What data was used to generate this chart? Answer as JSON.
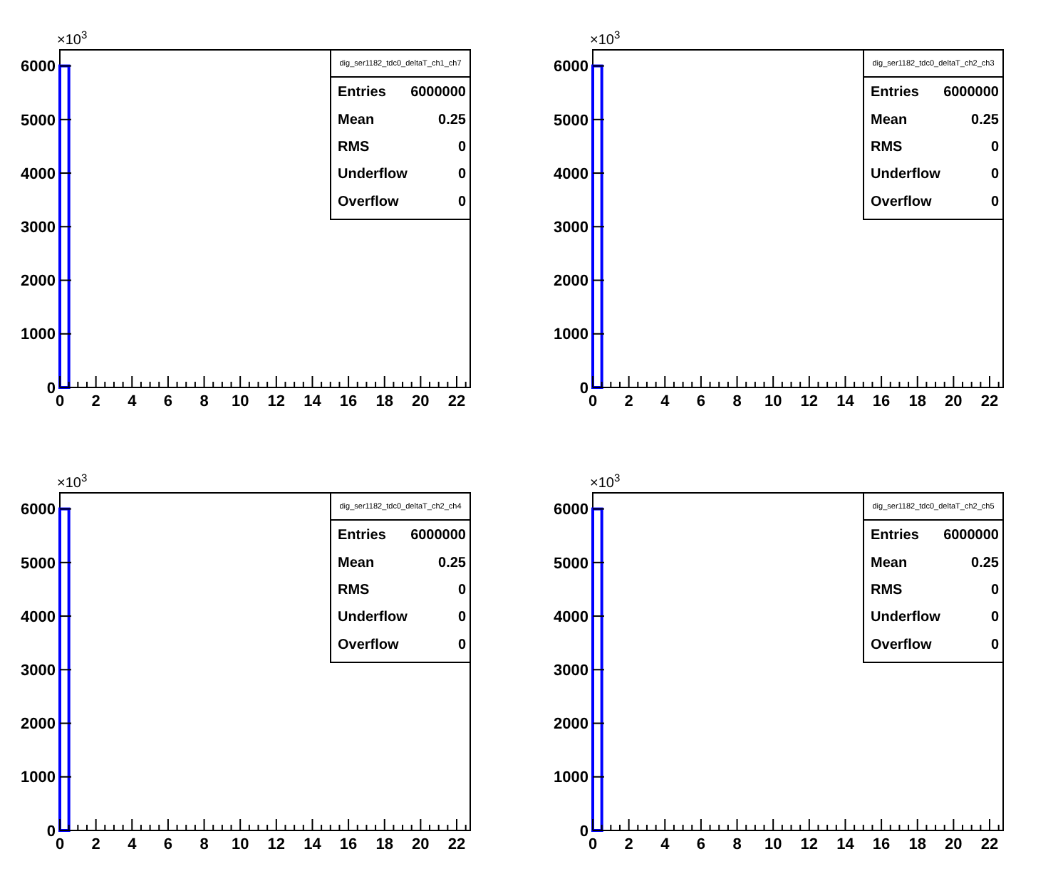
{
  "chart_data": [
    {
      "type": "histogram",
      "title": "dig_ser1182_tdc0_deltaT_ch1_ch7",
      "color": "#0000ff",
      "bins": [
        0,
        0.5,
        1,
        1.5,
        2,
        2.5,
        3,
        3.5,
        4,
        4.5,
        5,
        5.5,
        6,
        6.5,
        7,
        7.5,
        8,
        8.5,
        9,
        9.5,
        10,
        10.5,
        11,
        11.5,
        12,
        12.5,
        13,
        13.5,
        14,
        14.5,
        15,
        15.5,
        16,
        16.5,
        17,
        17.5,
        18,
        18.5,
        19,
        19.5,
        20,
        20.5,
        21,
        21.5,
        22,
        22.5
      ],
      "values": [
        6000,
        0,
        0,
        0,
        0,
        0,
        0,
        0,
        0,
        0,
        0,
        0,
        0,
        0,
        0,
        0,
        0,
        0,
        0,
        0,
        0,
        0,
        0,
        0,
        0,
        0,
        0,
        0,
        0,
        0,
        0,
        0,
        0,
        0,
        0,
        0,
        0,
        0,
        0,
        0,
        0,
        0,
        0,
        0,
        0
      ],
      "xlim": [
        0,
        22.75
      ],
      "xticks": [
        0,
        {
          "value": 0.5,
          "label": null
        },
        {
          "value": 1,
          "label": null
        },
        {
          "value": 1.5,
          "label": null
        },
        2,
        {
          "value": 2.5,
          "label": null
        },
        {
          "value": 3,
          "label": null
        },
        {
          "value": 3.5,
          "label": null
        },
        4,
        {
          "value": 4.5,
          "label": null
        },
        {
          "value": 5,
          "label": null
        },
        {
          "value": 5.5,
          "label": null
        },
        6,
        {
          "value": 6.5,
          "label": null
        },
        {
          "value": 7,
          "label": null
        },
        {
          "value": 7.5,
          "label": null
        },
        8,
        {
          "value": 8.5,
          "label": null
        },
        {
          "value": 9,
          "label": null
        },
        {
          "value": 9.5,
          "label": null
        },
        10,
        {
          "value": 10.5,
          "label": null
        },
        {
          "value": 11,
          "label": null
        },
        {
          "value": 11.5,
          "label": null
        },
        12,
        {
          "value": 12.5,
          "label": null
        },
        {
          "value": 13,
          "label": null
        },
        {
          "value": 13.5,
          "label": null
        },
        14,
        {
          "value": 14.5,
          "label": null
        },
        {
          "value": 15,
          "label": null
        },
        {
          "value": 15.5,
          "label": null
        },
        16,
        {
          "value": 16.5,
          "label": null
        },
        {
          "value": 17,
          "label": null
        },
        {
          "value": 17.5,
          "label": null
        },
        18,
        {
          "value": 18.5,
          "label": null
        },
        {
          "value": 19,
          "label": null
        },
        {
          "value": 19.5,
          "label": null
        },
        20,
        {
          "value": 20.5,
          "label": null
        },
        {
          "value": 21,
          "label": null
        },
        {
          "value": 21.5,
          "label": null
        },
        22,
        {
          "value": 22.5,
          "label": null
        }
      ],
      "ylim": [
        0,
        6300
      ],
      "yticks": [
        0,
        1000,
        2000,
        3000,
        4000,
        5000,
        6000
      ],
      "annotations": [
        "×10$^{3}$",
        "Entries\t6000000",
        "Mean\t0.25",
        "RMS\t0",
        "Underflow\t0",
        "Overflow\t0"
      ]
    },
    {
      "type": "histogram",
      "title": "dig_ser1182_tdc0_deltaT_ch2_ch3",
      "color": "#0000ff",
      "bins": [
        0,
        0.5,
        1,
        1.5,
        2,
        2.5,
        3,
        3.5,
        4,
        4.5,
        5,
        5.5,
        6,
        6.5,
        7,
        7.5,
        8,
        8.5,
        9,
        9.5,
        10,
        10.5,
        11,
        11.5,
        12,
        12.5,
        13,
        13.5,
        14,
        14.5,
        15,
        15.5,
        16,
        16.5,
        17,
        17.5,
        18,
        18.5,
        19,
        19.5,
        20,
        20.5,
        21,
        21.5,
        22,
        22.5
      ],
      "values": [
        6000,
        0,
        0,
        0,
        0,
        0,
        0,
        0,
        0,
        0,
        0,
        0,
        0,
        0,
        0,
        0,
        0,
        0,
        0,
        0,
        0,
        0,
        0,
        0,
        0,
        0,
        0,
        0,
        0,
        0,
        0,
        0,
        0,
        0,
        0,
        0,
        0,
        0,
        0,
        0,
        0,
        0,
        0,
        0,
        0
      ],
      "xlim": [
        0,
        22.75
      ],
      "xticks": [
        0,
        {
          "value": 0.5,
          "label": null
        },
        {
          "value": 1,
          "label": null
        },
        {
          "value": 1.5,
          "label": null
        },
        2,
        {
          "value": 2.5,
          "label": null
        },
        {
          "value": 3,
          "label": null
        },
        {
          "value": 3.5,
          "label": null
        },
        4,
        {
          "value": 4.5,
          "label": null
        },
        {
          "value": 5,
          "label": null
        },
        {
          "value": 5.5,
          "label": null
        },
        6,
        {
          "value": 6.5,
          "label": null
        },
        {
          "value": 7,
          "label": null
        },
        {
          "value": 7.5,
          "label": null
        },
        8,
        {
          "value": 8.5,
          "label": null
        },
        {
          "value": 9,
          "label": null
        },
        {
          "value": 9.5,
          "label": null
        },
        10,
        {
          "value": 10.5,
          "label": null
        },
        {
          "value": 11,
          "label": null
        },
        {
          "value": 11.5,
          "label": null
        },
        12,
        {
          "value": 12.5,
          "label": null
        },
        {
          "value": 13,
          "label": null
        },
        {
          "value": 13.5,
          "label": null
        },
        14,
        {
          "value": 14.5,
          "label": null
        },
        {
          "value": 15,
          "label": null
        },
        {
          "value": 15.5,
          "label": null
        },
        16,
        {
          "value": 16.5,
          "label": null
        },
        {
          "value": 17,
          "label": null
        },
        {
          "value": 17.5,
          "label": null
        },
        18,
        {
          "value": 18.5,
          "label": null
        },
        {
          "value": 19,
          "label": null
        },
        {
          "value": 19.5,
          "label": null
        },
        20,
        {
          "value": 20.5,
          "label": null
        },
        {
          "value": 21,
          "label": null
        },
        {
          "value": 21.5,
          "label": null
        },
        22,
        {
          "value": 22.5,
          "label": null
        }
      ],
      "ylim": [
        0,
        6300
      ],
      "yticks": [
        0,
        1000,
        2000,
        3000,
        4000,
        5000,
        6000
      ],
      "annotations": [
        "×10$^{3}$",
        "Entries\t6000000",
        "Mean\t0.25",
        "RMS\t0",
        "Underflow\t0",
        "Overflow\t0"
      ]
    },
    {
      "type": "histogram",
      "title": "dig_ser1182_tdc0_deltaT_ch2_ch4",
      "color": "#0000ff",
      "bins": [
        0,
        0.5,
        1,
        1.5,
        2,
        2.5,
        3,
        3.5,
        4,
        4.5,
        5,
        5.5,
        6,
        6.5,
        7,
        7.5,
        8,
        8.5,
        9,
        9.5,
        10,
        10.5,
        11,
        11.5,
        12,
        12.5,
        13,
        13.5,
        14,
        14.5,
        15,
        15.5,
        16,
        16.5,
        17,
        17.5,
        18,
        18.5,
        19,
        19.5,
        20,
        20.5,
        21,
        21.5,
        22,
        22.5
      ],
      "values": [
        6000,
        0,
        0,
        0,
        0,
        0,
        0,
        0,
        0,
        0,
        0,
        0,
        0,
        0,
        0,
        0,
        0,
        0,
        0,
        0,
        0,
        0,
        0,
        0,
        0,
        0,
        0,
        0,
        0,
        0,
        0,
        0,
        0,
        0,
        0,
        0,
        0,
        0,
        0,
        0,
        0,
        0,
        0,
        0,
        0
      ],
      "xlim": [
        0,
        22.75
      ],
      "xticks": [
        0,
        {
          "value": 0.5,
          "label": null
        },
        {
          "value": 1,
          "label": null
        },
        {
          "value": 1.5,
          "label": null
        },
        2,
        {
          "value": 2.5,
          "label": null
        },
        {
          "value": 3,
          "label": null
        },
        {
          "value": 3.5,
          "label": null
        },
        4,
        {
          "value": 4.5,
          "label": null
        },
        {
          "value": 5,
          "label": null
        },
        {
          "value": 5.5,
          "label": null
        },
        6,
        {
          "value": 6.5,
          "label": null
        },
        {
          "value": 7,
          "label": null
        },
        {
          "value": 7.5,
          "label": null
        },
        8,
        {
          "value": 8.5,
          "label": null
        },
        {
          "value": 9,
          "label": null
        },
        {
          "value": 9.5,
          "label": null
        },
        10,
        {
          "value": 10.5,
          "label": null
        },
        {
          "value": 11,
          "label": null
        },
        {
          "value": 11.5,
          "label": null
        },
        12,
        {
          "value": 12.5,
          "label": null
        },
        {
          "value": 13,
          "label": null
        },
        {
          "value": 13.5,
          "label": null
        },
        14,
        {
          "value": 14.5,
          "label": null
        },
        {
          "value": 15,
          "label": null
        },
        {
          "value": 15.5,
          "label": null
        },
        16,
        {
          "value": 16.5,
          "label": null
        },
        {
          "value": 17,
          "label": null
        },
        {
          "value": 17.5,
          "label": null
        },
        18,
        {
          "value": 18.5,
          "label": null
        },
        {
          "value": 19,
          "label": null
        },
        {
          "value": 19.5,
          "label": null
        },
        20,
        {
          "value": 20.5,
          "label": null
        },
        {
          "value": 21,
          "label": null
        },
        {
          "value": 21.5,
          "label": null
        },
        22,
        {
          "value": 22.5,
          "label": null
        }
      ],
      "ylim": [
        0,
        6300
      ],
      "yticks": [
        0,
        1000,
        2000,
        3000,
        4000,
        5000,
        6000
      ],
      "annotations": [
        "×10$^{3}$",
        "Entries\t6000000",
        "Mean\t0.25",
        "RMS\t0",
        "Underflow\t0",
        "Overflow\t0"
      ]
    },
    {
      "type": "histogram",
      "title": "dig_ser1182_tdc0_deltaT_ch2_ch5",
      "color": "#0000ff",
      "bins": [
        0,
        0.5,
        1,
        1.5,
        2,
        2.5,
        3,
        3.5,
        4,
        4.5,
        5,
        5.5,
        6,
        6.5,
        7,
        7.5,
        8,
        8.5,
        9,
        9.5,
        10,
        10.5,
        11,
        11.5,
        12,
        12.5,
        13,
        13.5,
        14,
        14.5,
        15,
        15.5,
        16,
        16.5,
        17,
        17.5,
        18,
        18.5,
        19,
        19.5,
        20,
        20.5,
        21,
        21.5,
        22,
        22.5
      ],
      "values": [
        6000,
        0,
        0,
        0,
        0,
        0,
        0,
        0,
        0,
        0,
        0,
        0,
        0,
        0,
        0,
        0,
        0,
        0,
        0,
        0,
        0,
        0,
        0,
        0,
        0,
        0,
        0,
        0,
        0,
        0,
        0,
        0,
        0,
        0,
        0,
        0,
        0,
        0,
        0,
        0,
        0,
        0,
        0,
        0,
        0
      ],
      "xlim": [
        0,
        22.75
      ],
      "xticks": [
        0,
        {
          "value": 0.5,
          "label": null
        },
        {
          "value": 1,
          "label": null
        },
        {
          "value": 1.5,
          "label": null
        },
        2,
        {
          "value": 2.5,
          "label": null
        },
        {
          "value": 3,
          "label": null
        },
        {
          "value": 3.5,
          "label": null
        },
        4,
        {
          "value": 4.5,
          "label": null
        },
        {
          "value": 5,
          "label": null
        },
        {
          "value": 5.5,
          "label": null
        },
        6,
        {
          "value": 6.5,
          "label": null
        },
        {
          "value": 7,
          "label": null
        },
        {
          "value": 7.5,
          "label": null
        },
        8,
        {
          "value": 8.5,
          "label": null
        },
        {
          "value": 9,
          "label": null
        },
        {
          "value": 9.5,
          "label": null
        },
        10,
        {
          "value": 10.5,
          "label": null
        },
        {
          "value": 11,
          "label": null
        },
        {
          "value": 11.5,
          "label": null
        },
        12,
        {
          "value": 12.5,
          "label": null
        },
        {
          "value": 13,
          "label": null
        },
        {
          "value": 13.5,
          "label": null
        },
        14,
        {
          "value": 14.5,
          "label": null
        },
        {
          "value": 15,
          "label": null
        },
        {
          "value": 15.5,
          "label": null
        },
        16,
        {
          "value": 16.5,
          "label": null
        },
        {
          "value": 17,
          "label": null
        },
        {
          "value": 17.5,
          "label": null
        },
        18,
        {
          "value": 18.5,
          "label": null
        },
        {
          "value": 19,
          "label": null
        },
        {
          "value": 19.5,
          "label": null
        },
        20,
        {
          "value": 20.5,
          "label": null
        },
        {
          "value": 21,
          "label": null
        },
        {
          "value": 21.5,
          "label": null
        },
        22,
        {
          "value": 22.5,
          "label": null
        }
      ],
      "ylim": [
        0,
        6300
      ],
      "yticks": [
        0,
        1000,
        2000,
        3000,
        4000,
        5000,
        6000
      ],
      "annotations": [
        "×10$^{3}$",
        "Entries\t6000000",
        "Mean\t0.25",
        "RMS\t0",
        "Underflow\t0",
        "Overflow\t0"
      ]
    }
  ]
}
